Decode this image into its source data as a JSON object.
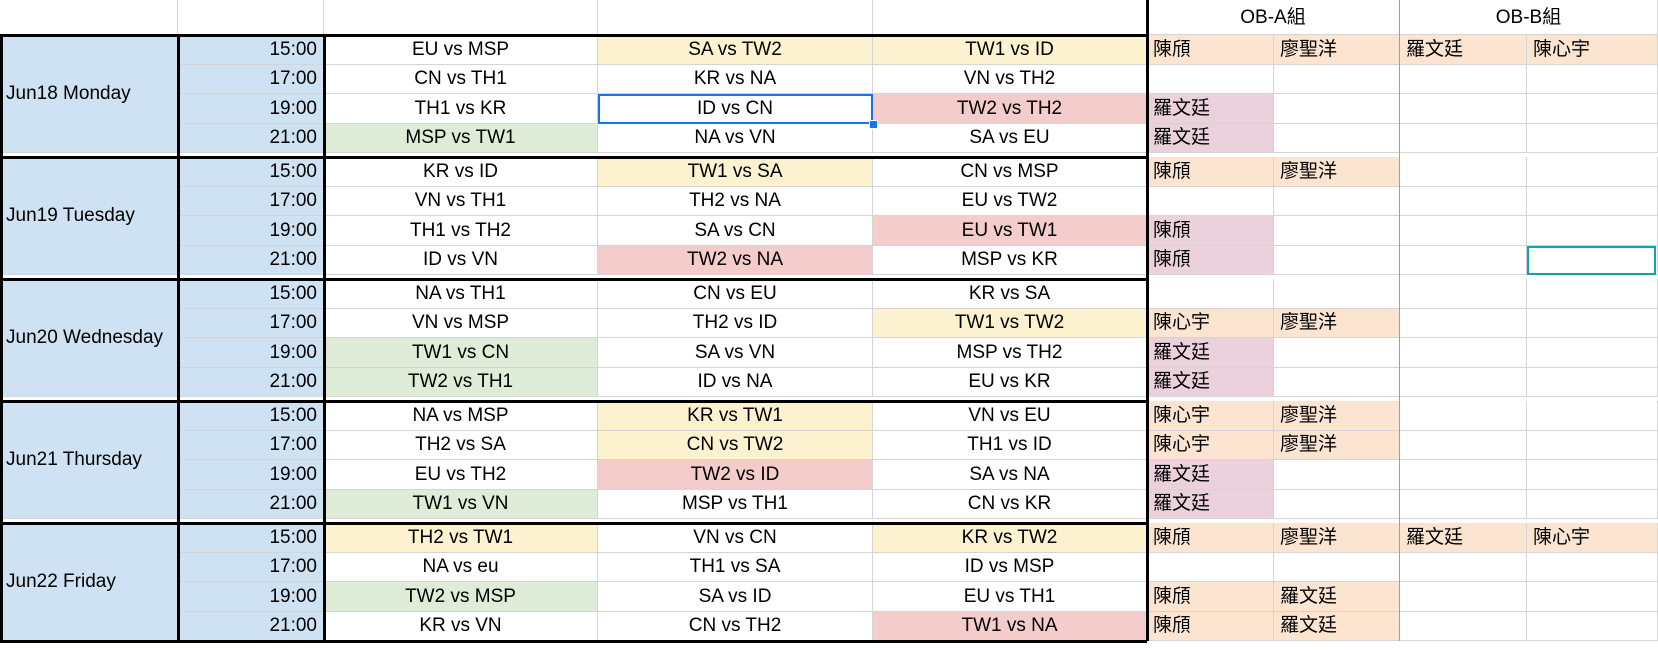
{
  "header": {
    "ob_a": "OB-A組",
    "ob_b": "OB-B組"
  },
  "days": [
    {
      "label": "Jun18 Monday",
      "rows": [
        {
          "time": "15:00",
          "m1": "EU vs MSP",
          "m2": "SA vs TW2",
          "m3": "TW1 vs ID",
          "a1": "陳頎",
          "a2": "廖聖洋",
          "b1": "羅文廷",
          "b2": "陳心宇"
        },
        {
          "time": "17:00",
          "m1": "CN vs TH1",
          "m2": "KR vs NA",
          "m3": "VN vs TH2",
          "a1": "",
          "a2": "",
          "b1": "",
          "b2": ""
        },
        {
          "time": "19:00",
          "m1": "TH1 vs KR",
          "m2": "ID vs CN",
          "m3": "TW2 vs TH2",
          "a1": "羅文廷",
          "a2": "",
          "b1": "",
          "b2": ""
        },
        {
          "time": "21:00",
          "m1": "MSP vs TW1",
          "m2": "NA vs VN",
          "m3": "SA vs EU",
          "a1": "羅文廷",
          "a2": "",
          "b1": "",
          "b2": ""
        }
      ]
    },
    {
      "label": "Jun19 Tuesday",
      "rows": [
        {
          "time": "15:00",
          "m1": "KR vs ID",
          "m2": "TW1 vs SA",
          "m3": "CN vs MSP",
          "a1": "陳頎",
          "a2": "廖聖洋",
          "b1": "",
          "b2": ""
        },
        {
          "time": "17:00",
          "m1": "VN vs TH1",
          "m2": "TH2 vs NA",
          "m3": "EU vs TW2",
          "a1": "",
          "a2": "",
          "b1": "",
          "b2": ""
        },
        {
          "time": "19:00",
          "m1": "TH1 vs TH2",
          "m2": "SA vs CN",
          "m3": "EU vs TW1",
          "a1": "陳頎",
          "a2": "",
          "b1": "",
          "b2": ""
        },
        {
          "time": "21:00",
          "m1": "ID vs VN",
          "m2": "TW2 vs NA",
          "m3": "MSP vs KR",
          "a1": "陳頎",
          "a2": "",
          "b1": "",
          "b2": ""
        }
      ]
    },
    {
      "label": "Jun20 Wednesday",
      "rows": [
        {
          "time": "15:00",
          "m1": "NA vs TH1",
          "m2": "CN vs EU",
          "m3": "KR vs SA",
          "a1": "",
          "a2": "",
          "b1": "",
          "b2": ""
        },
        {
          "time": "17:00",
          "m1": "VN vs MSP",
          "m2": "TH2 vs ID",
          "m3": "TW1 vs TW2",
          "a1": "陳心宇",
          "a2": "廖聖洋",
          "b1": "",
          "b2": ""
        },
        {
          "time": "19:00",
          "m1": "TW1 vs CN",
          "m2": "SA vs VN",
          "m3": "MSP vs TH2",
          "a1": "羅文廷",
          "a2": "",
          "b1": "",
          "b2": ""
        },
        {
          "time": "21:00",
          "m1": "TW2 vs TH1",
          "m2": "ID vs NA",
          "m3": "EU vs KR",
          "a1": "羅文廷",
          "a2": "",
          "b1": "",
          "b2": ""
        }
      ]
    },
    {
      "label": "Jun21 Thursday",
      "rows": [
        {
          "time": "15:00",
          "m1": "NA vs MSP",
          "m2": "KR vs TW1",
          "m3": "VN vs EU",
          "a1": "陳心宇",
          "a2": "廖聖洋",
          "b1": "",
          "b2": ""
        },
        {
          "time": "17:00",
          "m1": "TH2 vs SA",
          "m2": "CN vs TW2",
          "m3": "TH1 vs ID",
          "a1": "陳心宇",
          "a2": "廖聖洋",
          "b1": "",
          "b2": ""
        },
        {
          "time": "19:00",
          "m1": "EU vs TH2",
          "m2": "TW2 vs ID",
          "m3": "SA vs NA",
          "a1": "羅文廷",
          "a2": "",
          "b1": "",
          "b2": ""
        },
        {
          "time": "21:00",
          "m1": "TW1 vs VN",
          "m2": "MSP vs TH1",
          "m3": "CN vs KR",
          "a1": "羅文廷",
          "a2": "",
          "b1": "",
          "b2": ""
        }
      ]
    },
    {
      "label": "Jun22 Friday",
      "rows": [
        {
          "time": "15:00",
          "m1": "TH2 vs TW1",
          "m2": "VN vs CN",
          "m3": "KR vs TW2",
          "a1": "陳頎",
          "a2": "廖聖洋",
          "b1": "羅文廷",
          "b2": "陳心宇"
        },
        {
          "time": "17:00",
          "m1": "NA vs eu",
          "m2": "TH1 vs SA",
          "m3": "ID vs MSP",
          "a1": "",
          "a2": "",
          "b1": "",
          "b2": ""
        },
        {
          "time": "19:00",
          "m1": "TW2 vs MSP",
          "m2": "SA vs ID",
          "m3": "EU vs TH1",
          "a1": "陳頎",
          "a2": "羅文廷",
          "b1": "",
          "b2": ""
        },
        {
          "time": "21:00",
          "m1": "KR vs VN",
          "m2": "CN vs TH2",
          "m3": "TW1 vs NA",
          "a1": "陳頎",
          "a2": "羅文廷",
          "b1": "",
          "b2": ""
        }
      ]
    }
  ],
  "highlights": {
    "yellow": "#fdf2d0",
    "green": "#dfedd8",
    "red": "#f4cccc",
    "peach": "#fce5d0",
    "pink": "#ead1dc",
    "day_blue": "#cfe2f3",
    "selection": "#1a73e8"
  }
}
